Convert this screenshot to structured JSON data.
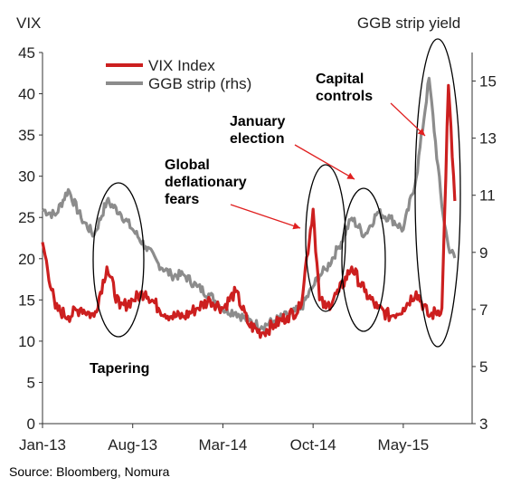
{
  "chart_data": {
    "type": "line",
    "left_axis_label": "VIX",
    "right_axis_label": "GGB strip yield",
    "ylim": [
      0,
      45
    ],
    "ylim_right": [
      3,
      16
    ],
    "y_ticks": [
      0,
      5,
      10,
      15,
      20,
      25,
      30,
      35,
      40,
      45
    ],
    "y_ticks_right": [
      3,
      5,
      7,
      9,
      11,
      13,
      15
    ],
    "x_ticks": [
      "Jan-13",
      "Aug-13",
      "Mar-14",
      "Oct-14",
      "May-15"
    ],
    "legend_position": "top-left",
    "x_range": [
      "2013-01",
      "2015-09"
    ],
    "series": [
      {
        "name": "VIX Index",
        "color": "#cc1f1f",
        "axis": "left",
        "x": [
          "2013-01",
          "2013-02",
          "2013-03",
          "2013-04",
          "2013-05",
          "2013-06",
          "2013-07",
          "2013-08",
          "2013-09",
          "2013-10",
          "2013-11",
          "2013-12",
          "2014-01",
          "2014-02",
          "2014-03",
          "2014-04",
          "2014-05",
          "2014-06",
          "2014-07",
          "2014-08",
          "2014-09",
          "2014-10",
          "2014-10b",
          "2014-11",
          "2014-12",
          "2015-01",
          "2015-02",
          "2015-03",
          "2015-04",
          "2015-05",
          "2015-06",
          "2015-07",
          "2015-08",
          "2015-08b",
          "2015-09"
        ],
        "values": [
          22,
          14,
          13,
          14,
          13,
          19,
          14,
          15,
          16,
          14,
          13,
          13,
          14,
          15,
          14,
          16,
          12,
          11,
          12,
          13,
          14,
          26,
          15,
          14,
          16,
          19,
          16,
          14,
          13,
          14,
          16,
          13,
          14,
          41,
          27
        ]
      },
      {
        "name": "GGB strip (rhs)",
        "color": "#8c8c8c",
        "axis": "right",
        "x": [
          "2013-01",
          "2013-02",
          "2013-03",
          "2013-04",
          "2013-05",
          "2013-06",
          "2013-07",
          "2013-08",
          "2013-09",
          "2013-10",
          "2013-11",
          "2013-12",
          "2014-01",
          "2014-02",
          "2014-03",
          "2014-04",
          "2014-05",
          "2014-06",
          "2014-07",
          "2014-08",
          "2014-09",
          "2014-10",
          "2014-10b",
          "2014-11",
          "2014-12",
          "2015-01",
          "2015-02",
          "2015-03",
          "2015-04",
          "2015-05",
          "2015-06",
          "2015-07",
          "2015-08",
          "2015-08b",
          "2015-09"
        ],
        "values": [
          10.5,
          10.3,
          11.2,
          10.2,
          9.6,
          10.8,
          10.4,
          9.8,
          9.2,
          8.6,
          8.2,
          8.2,
          7.8,
          7.5,
          7.0,
          6.9,
          6.6,
          6.4,
          6.6,
          6.8,
          7.0,
          7.8,
          8.2,
          8.4,
          9.2,
          10.2,
          9.6,
          10.4,
          10.2,
          9.8,
          11.6,
          15.1,
          10.6,
          9.2,
          8.8
        ]
      }
    ],
    "annotations": [
      {
        "text": "Tapering"
      },
      {
        "text": "Global deflationary fears"
      },
      {
        "text": "January election"
      },
      {
        "text": "Capital controls"
      }
    ]
  },
  "footer": {
    "source": "Source: Bloomberg, Nomura"
  }
}
